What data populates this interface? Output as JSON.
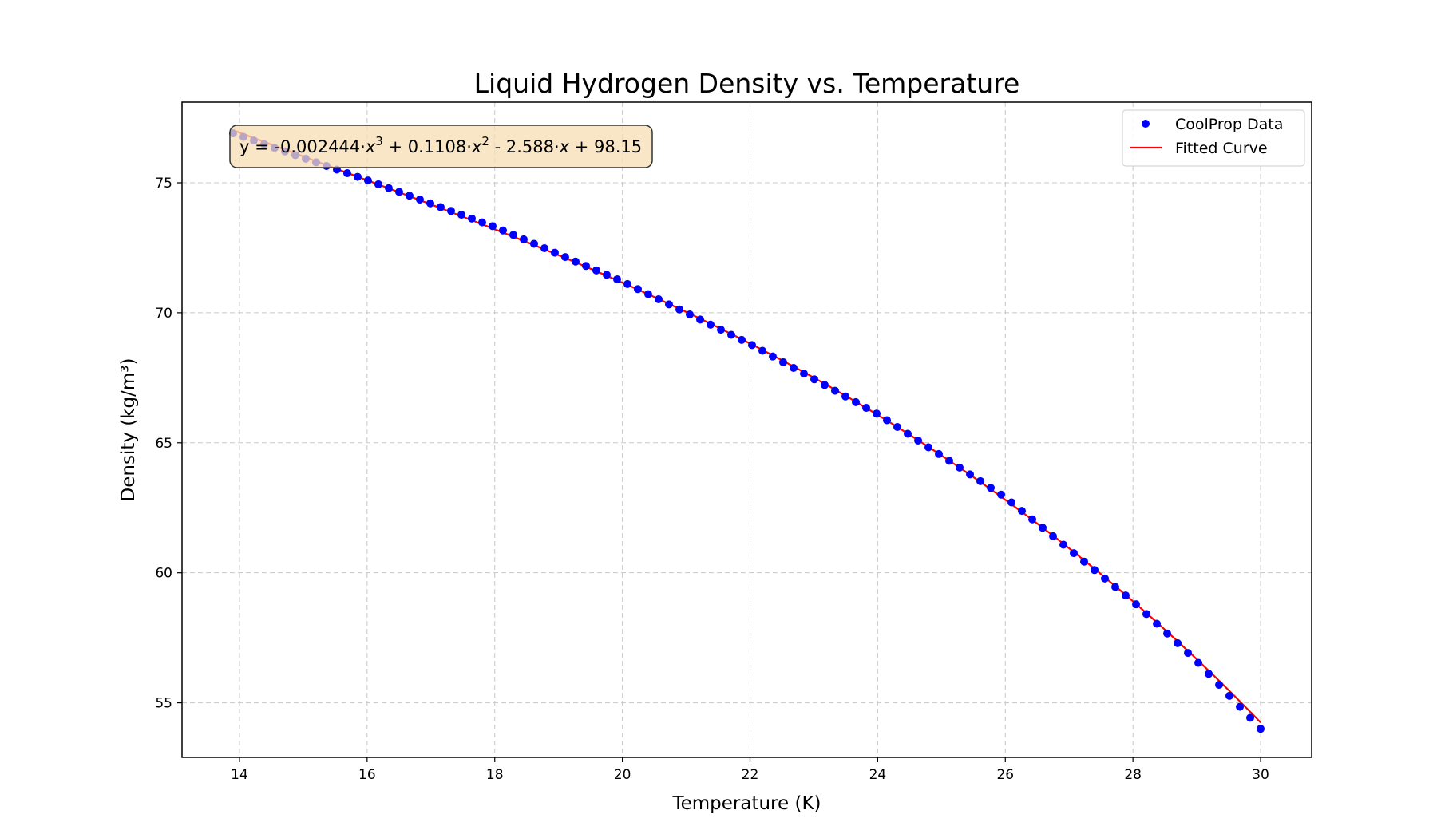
{
  "chart_data": {
    "type": "scatter",
    "title": "Liquid Hydrogen Density vs. Temperature",
    "xlabel": "Temperature (K)",
    "ylabel": "Density (kg/m³)",
    "xlim": [
      13.1,
      30.8
    ],
    "ylim": [
      52.9,
      78.1
    ],
    "xticks": [
      14,
      16,
      18,
      20,
      22,
      24,
      26,
      28,
      30
    ],
    "yticks": [
      55,
      60,
      65,
      70,
      75
    ],
    "grid": true,
    "grid_style": "dashed",
    "legend_position": "upper-right",
    "series": [
      {
        "name": "CoolProp Data",
        "kind": "points",
        "color": "#0000ff",
        "x_start": 13.9,
        "x_end": 30.0,
        "count": 100,
        "x_sample": [
          13.9,
          16.0,
          18.0,
          20.0,
          22.0,
          24.0,
          26.0,
          28.0,
          29.0,
          30.0
        ],
        "y_sample": [
          76.9,
          75.1,
          73.3,
          71.2,
          68.8,
          66.1,
          62.9,
          58.9,
          56.6,
          54.0
        ]
      },
      {
        "name": "Fitted Curve",
        "kind": "line",
        "color": "#ff0000",
        "coefficients": [
          -0.002444,
          0.1108,
          -2.588,
          98.15
        ]
      }
    ],
    "annotation": {
      "text_parts": [
        "y = -0.002444·",
        "x",
        "3",
        " + 0.1108·",
        "x",
        "2",
        " - 2.588·",
        "x",
        " + 98.15"
      ],
      "position": "upper-left",
      "box_fill": "#f5deb3",
      "box_stroke": "#333333"
    }
  }
}
